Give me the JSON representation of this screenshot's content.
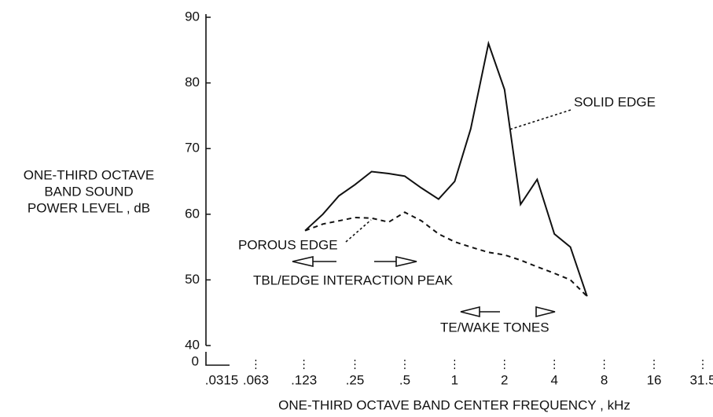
{
  "chart_data": {
    "type": "line",
    "x_label": "ONE-THIRD OCTAVE BAND CENTER FREQUENCY , kHz",
    "y_label": [
      "ONE-THIRD OCTAVE",
      "BAND SOUND",
      "POWER LEVEL , dB"
    ],
    "y_axis_zero_label": "0",
    "x": [
      0.125,
      0.16,
      0.2,
      0.25,
      0.315,
      0.4,
      0.5,
      0.63,
      0.8,
      1.0,
      1.25,
      1.6,
      2.0,
      2.5,
      3.15,
      4.0,
      5.0,
      6.3
    ],
    "series": [
      {
        "name": "SOLID EDGE",
        "color": "#111111",
        "dashed": false,
        "values": [
          57.5,
          60,
          62.8,
          64.5,
          66.5,
          66.2,
          65.8,
          64,
          62.3,
          65,
          73,
          86,
          79,
          61.5,
          65.3,
          57,
          55,
          47.5
        ]
      },
      {
        "name": "POROUS EDGE",
        "color": "#111111",
        "dashed": true,
        "values": [
          57.5,
          58.5,
          59,
          59.5,
          59.4,
          58.8,
          60.3,
          59,
          57,
          55.8,
          55,
          54.2,
          53.8,
          53,
          52,
          51,
          50,
          47.5
        ]
      }
    ],
    "annotations": [
      "TBL/EDGE INTERACTION PEAK",
      "TE/WAKE TONES"
    ],
    "log_x": true,
    "xlim": [
      0.0315,
      31.5
    ],
    "xticks": [
      {
        "value": 0.0315,
        "label": ".0315"
      },
      {
        "value": 0.063,
        "label": ".063"
      },
      {
        "value": 0.123,
        "label": ".123"
      },
      {
        "value": 0.25,
        "label": ".25"
      },
      {
        "value": 0.5,
        "label": ".5"
      },
      1,
      2,
      4,
      8,
      16,
      31.5
    ],
    "ylim": [
      40,
      90
    ],
    "yticks": [
      40,
      50,
      60,
      70,
      80,
      90
    ]
  }
}
